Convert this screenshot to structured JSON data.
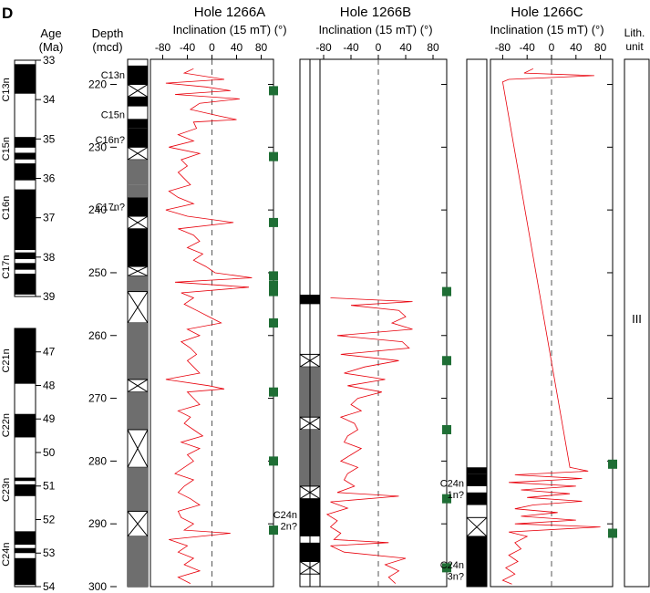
{
  "panel_label": "D",
  "age_header": [
    "Age",
    "(Ma)"
  ],
  "depth_header": [
    "Depth",
    "(mcd)"
  ],
  "lith_header": [
    "Lith.",
    "unit"
  ],
  "lith_unit": "III",
  "colors": {
    "data_line": "#e8000b",
    "square": "#1f6e35",
    "gray": "#6e6e6e",
    "black": "#000000"
  },
  "chart_data": {
    "type": "line",
    "depth_axis": {
      "label": "Depth (mcd)",
      "range": [
        216,
        300
      ],
      "ticks": [
        220,
        230,
        240,
        250,
        260,
        270,
        280,
        290,
        300
      ]
    },
    "inclination_axis": {
      "label": "Inclination (15 mT) (°)",
      "range": [
        -100,
        100
      ],
      "ticks": [
        -80,
        -40,
        0,
        40,
        80
      ]
    },
    "age_column": {
      "upper": {
        "ticks": [
          33,
          34,
          35,
          36,
          37,
          38,
          39
        ],
        "labels": [
          "C13n",
          "C15n",
          "C16n",
          "C17n"
        ],
        "blocks": [
          {
            "from": 33.1,
            "to": 33.85,
            "p": "normal"
          },
          {
            "from": 34.95,
            "to": 35.22,
            "p": "normal"
          },
          {
            "from": 35.35,
            "to": 35.52,
            "p": "normal"
          },
          {
            "from": 35.62,
            "to": 36.05,
            "p": "normal"
          },
          {
            "from": 36.28,
            "to": 37.82,
            "p": "normal"
          },
          {
            "from": 37.88,
            "to": 38.05,
            "p": "normal"
          },
          {
            "from": 38.15,
            "to": 38.32,
            "p": "normal"
          },
          {
            "from": 38.42,
            "to": 38.95,
            "p": "normal"
          }
        ]
      },
      "lower": {
        "ticks": [
          47,
          48,
          49,
          50,
          51,
          52,
          53,
          54
        ],
        "labels": [
          "C21n",
          "C22n",
          "C23n",
          "C24n"
        ],
        "blocks": [
          {
            "from": 46.3,
            "to": 47.95,
            "p": "normal"
          },
          {
            "from": 48.85,
            "to": 49.55,
            "p": "normal"
          },
          {
            "from": 50.75,
            "to": 50.85,
            "p": "normal"
          },
          {
            "from": 50.95,
            "to": 51.3,
            "p": "normal"
          },
          {
            "from": 52.35,
            "to": 52.75,
            "p": "normal"
          },
          {
            "from": 52.85,
            "to": 53.0,
            "p": "normal"
          },
          {
            "from": 53.15,
            "to": 53.95,
            "p": "normal"
          }
        ]
      }
    },
    "holes": [
      {
        "title": "Hole 1266A",
        "polarity": [
          {
            "from": 217,
            "to": 220,
            "p": "normal"
          },
          {
            "from": 220,
            "to": 222,
            "p": "gap"
          },
          {
            "from": 222,
            "to": 223.5,
            "p": "normal"
          },
          {
            "from": 223.5,
            "to": 225.5,
            "p": "reversed"
          },
          {
            "from": 225.5,
            "to": 227,
            "p": "normal"
          },
          {
            "from": 227,
            "to": 230,
            "p": "normal"
          },
          {
            "from": 230,
            "to": 232,
            "p": "gap"
          },
          {
            "from": 232,
            "to": 236,
            "p": "uncertain"
          },
          {
            "from": 236,
            "to": 238,
            "p": "uncertain"
          },
          {
            "from": 238,
            "to": 241,
            "p": "normal"
          },
          {
            "from": 241,
            "to": 243,
            "p": "gap"
          },
          {
            "from": 243,
            "to": 249,
            "p": "normal"
          },
          {
            "from": 249,
            "to": 250.5,
            "p": "gap"
          },
          {
            "from": 250.5,
            "to": 253,
            "p": "uncertain"
          },
          {
            "from": 253,
            "to": 258,
            "p": "gap"
          },
          {
            "from": 258,
            "to": 267,
            "p": "uncertain"
          },
          {
            "from": 267,
            "to": 269,
            "p": "gap"
          },
          {
            "from": 269,
            "to": 275,
            "p": "uncertain"
          },
          {
            "from": 275,
            "to": 281,
            "p": "gap"
          },
          {
            "from": 281,
            "to": 288,
            "p": "uncertain"
          },
          {
            "from": 288,
            "to": 292,
            "p": "gap"
          },
          {
            "from": 292,
            "to": 300,
            "p": "uncertain"
          }
        ],
        "labels": [
          {
            "text": "C13n",
            "depth": 218.5
          },
          {
            "text": "C15n",
            "depth": 224.8
          },
          {
            "text": "C16n?",
            "depth": 228.8
          },
          {
            "text": "C17n?",
            "depth": 239.5
          }
        ],
        "core_breaks": [
          221,
          231.5,
          242,
          250.5,
          252,
          253,
          258,
          269,
          280,
          291
        ],
        "trace": [
          [
            -30,
            217.5
          ],
          [
            -45,
            218.2
          ],
          [
            20,
            219.2
          ],
          [
            -75,
            219.8
          ],
          [
            -10,
            220.4
          ],
          [
            30,
            221.0
          ],
          [
            -60,
            221.6
          ],
          [
            45,
            222.3
          ],
          [
            -20,
            223.0
          ],
          [
            -35,
            224.0
          ],
          [
            10,
            225.0
          ],
          [
            40,
            225.6
          ],
          [
            -30,
            226.0
          ],
          [
            -25,
            227.0
          ],
          [
            -55,
            228.0
          ],
          [
            -30,
            229.0
          ],
          [
            -70,
            230.0
          ],
          [
            -20,
            231.0
          ],
          [
            -50,
            232.0
          ],
          [
            -40,
            233.0
          ],
          [
            -55,
            234.0
          ],
          [
            -45,
            235.0
          ],
          [
            -35,
            236.0
          ],
          [
            -70,
            237.0
          ],
          [
            -55,
            238.0
          ],
          [
            -30,
            239.0
          ],
          [
            -75,
            240.0
          ],
          [
            -40,
            241.0
          ],
          [
            35,
            242.0
          ],
          [
            -55,
            243.0
          ],
          [
            -30,
            244.0
          ],
          [
            -20,
            245.0
          ],
          [
            -40,
            246.0
          ],
          [
            -15,
            247.0
          ],
          [
            -30,
            248.0
          ],
          [
            -10,
            249.0
          ],
          [
            5,
            250.0
          ],
          [
            65,
            250.8
          ],
          [
            -60,
            251.5
          ],
          [
            60,
            252.3
          ],
          [
            -50,
            253.2
          ],
          [
            -30,
            254.0
          ],
          [
            -45,
            255.0
          ],
          [
            -25,
            256.0
          ],
          [
            -5,
            257.0
          ],
          [
            15,
            258.0
          ],
          [
            -40,
            259.0
          ],
          [
            -20,
            260.0
          ],
          [
            -50,
            261.0
          ],
          [
            -35,
            262.0
          ],
          [
            -25,
            263.0
          ],
          [
            -40,
            264.0
          ],
          [
            -30,
            265.0
          ],
          [
            -20,
            266.0
          ],
          [
            -75,
            267.0
          ],
          [
            -5,
            268.0
          ],
          [
            20,
            268.5
          ],
          [
            -40,
            269.0
          ],
          [
            -30,
            270.0
          ],
          [
            -20,
            271.0
          ],
          [
            -55,
            272.0
          ],
          [
            -35,
            273.0
          ],
          [
            -45,
            274.0
          ],
          [
            -30,
            275.0
          ],
          [
            -15,
            276.0
          ],
          [
            -50,
            277.0
          ],
          [
            -20,
            278.0
          ],
          [
            -40,
            279.0
          ],
          [
            -30,
            280.0
          ],
          [
            -45,
            281.0
          ],
          [
            -60,
            282.0
          ],
          [
            -30,
            283.0
          ],
          [
            -45,
            284.0
          ],
          [
            -55,
            285.0
          ],
          [
            -35,
            286.0
          ],
          [
            -20,
            287.0
          ],
          [
            -55,
            288.0
          ],
          [
            -50,
            289.0
          ],
          [
            -30,
            290.0
          ],
          [
            -45,
            291.0
          ],
          [
            30,
            291.5
          ],
          [
            -70,
            292.5
          ],
          [
            -40,
            293.5
          ],
          [
            -55,
            294.5
          ],
          [
            -30,
            295.5
          ],
          [
            -45,
            296.5
          ],
          [
            -20,
            297.5
          ],
          [
            -55,
            298.5
          ],
          [
            -35,
            299.5
          ]
        ],
        "squares": [
          221,
          231.5,
          242,
          250.5,
          252,
          253,
          258,
          269,
          280,
          291
        ]
      },
      {
        "title": "Hole 1266B",
        "polarity": [
          {
            "from": 253.5,
            "to": 255,
            "p": "normal"
          },
          {
            "from": 263,
            "to": 265,
            "p": "gap"
          },
          {
            "from": 265,
            "to": 273,
            "p": "uncertain"
          },
          {
            "from": 273,
            "to": 275,
            "p": "gap"
          },
          {
            "from": 275,
            "to": 284,
            "p": "uncertain"
          },
          {
            "from": 284,
            "to": 286,
            "p": "gap"
          },
          {
            "from": 286,
            "to": 292,
            "p": "normal"
          },
          {
            "from": 292,
            "to": 293,
            "p": "reversed"
          },
          {
            "from": 293,
            "to": 296,
            "p": "normal"
          },
          {
            "from": 296,
            "to": 298,
            "p": "gap"
          }
        ],
        "labels": [
          {
            "text": "C24n",
            "depth": 288.5
          },
          {
            "text": "2n?",
            "depth": 290.3
          }
        ],
        "core_breaks": [
          253,
          264,
          275,
          286,
          297
        ],
        "trace": [
          [
            -70,
            254.0
          ],
          [
            50,
            254.6
          ],
          [
            -40,
            255.2
          ],
          [
            30,
            256.0
          ],
          [
            40,
            257.0
          ],
          [
            20,
            258.0
          ],
          [
            50,
            259.0
          ],
          [
            -60,
            260.0
          ],
          [
            35,
            261.0
          ],
          [
            45,
            262.0
          ],
          [
            -55,
            263.0
          ],
          [
            30,
            264.0
          ],
          [
            -20,
            265.0
          ],
          [
            -50,
            266.0
          ],
          [
            10,
            267.0
          ],
          [
            -45,
            268.0
          ],
          [
            5,
            269.0
          ],
          [
            -30,
            270.0
          ],
          [
            -40,
            271.0
          ],
          [
            -25,
            272.0
          ],
          [
            -55,
            273.0
          ],
          [
            -35,
            274.0
          ],
          [
            -30,
            275.0
          ],
          [
            -45,
            276.0
          ],
          [
            -50,
            277.0
          ],
          [
            -25,
            278.0
          ],
          [
            -40,
            279.0
          ],
          [
            -55,
            280.0
          ],
          [
            -30,
            281.0
          ],
          [
            -45,
            282.0
          ],
          [
            -50,
            283.0
          ],
          [
            -35,
            284.0
          ],
          [
            -60,
            285.0
          ],
          [
            30,
            285.6
          ],
          [
            -70,
            286.5
          ],
          [
            -45,
            287.5
          ],
          [
            -75,
            288.5
          ],
          [
            -60,
            289.5
          ],
          [
            -70,
            290.5
          ],
          [
            -55,
            291.5
          ],
          [
            -65,
            292.5
          ],
          [
            15,
            293.0
          ],
          [
            -70,
            293.5
          ],
          [
            -50,
            294.5
          ],
          [
            40,
            295.5
          ],
          [
            10,
            296.5
          ],
          [
            30,
            297.5
          ],
          [
            15,
            298.5
          ],
          [
            25,
            299.5
          ]
        ],
        "squares": [
          253,
          264,
          275,
          286,
          297
        ]
      },
      {
        "title": "Hole 1266C",
        "polarity": [
          {
            "from": 281,
            "to": 282,
            "p": "normal"
          },
          {
            "from": 282,
            "to": 284,
            "p": "normal"
          },
          {
            "from": 284,
            "to": 285,
            "p": "reversed"
          },
          {
            "from": 285,
            "to": 287,
            "p": "normal"
          },
          {
            "from": 287,
            "to": 289,
            "p": "reversed"
          },
          {
            "from": 289,
            "to": 292,
            "p": "gap"
          },
          {
            "from": 292,
            "to": 300,
            "p": "normal"
          }
        ],
        "labels": [
          {
            "text": "C24n",
            "depth": 283.5
          },
          {
            "text": "1n?",
            "depth": 285.3
          },
          {
            "text": "C24n",
            "depth": 296.5
          },
          {
            "text": "3n?",
            "depth": 298.3
          }
        ],
        "core_breaks": [
          280.5,
          291.5
        ],
        "trace": [
          [
            -30,
            217.5
          ],
          [
            -45,
            218.2
          ],
          [
            70,
            218.6
          ],
          [
            -70,
            219.2
          ],
          [
            -80,
            219.6
          ],
          [
            30,
            281.0
          ],
          [
            60,
            281.6
          ],
          [
            -60,
            282.2
          ],
          [
            50,
            282.8
          ],
          [
            -70,
            283.4
          ],
          [
            40,
            284.0
          ],
          [
            -50,
            284.6
          ],
          [
            30,
            285.2
          ],
          [
            -40,
            285.8
          ],
          [
            50,
            286.4
          ],
          [
            -30,
            287.0
          ],
          [
            -60,
            287.6
          ],
          [
            10,
            288.2
          ],
          [
            -50,
            288.8
          ],
          [
            40,
            289.4
          ],
          [
            -60,
            290.0
          ],
          [
            80,
            290.5
          ],
          [
            -70,
            291.3
          ],
          [
            -40,
            292.0
          ],
          [
            -60,
            293.0
          ],
          [
            -50,
            294.0
          ],
          [
            -70,
            295.0
          ],
          [
            -55,
            296.0
          ],
          [
            -75,
            297.0
          ],
          [
            -60,
            298.0
          ],
          [
            -80,
            299.0
          ],
          [
            -65,
            299.6
          ]
        ],
        "squares": [
          280.5,
          291.5
        ]
      }
    ]
  }
}
